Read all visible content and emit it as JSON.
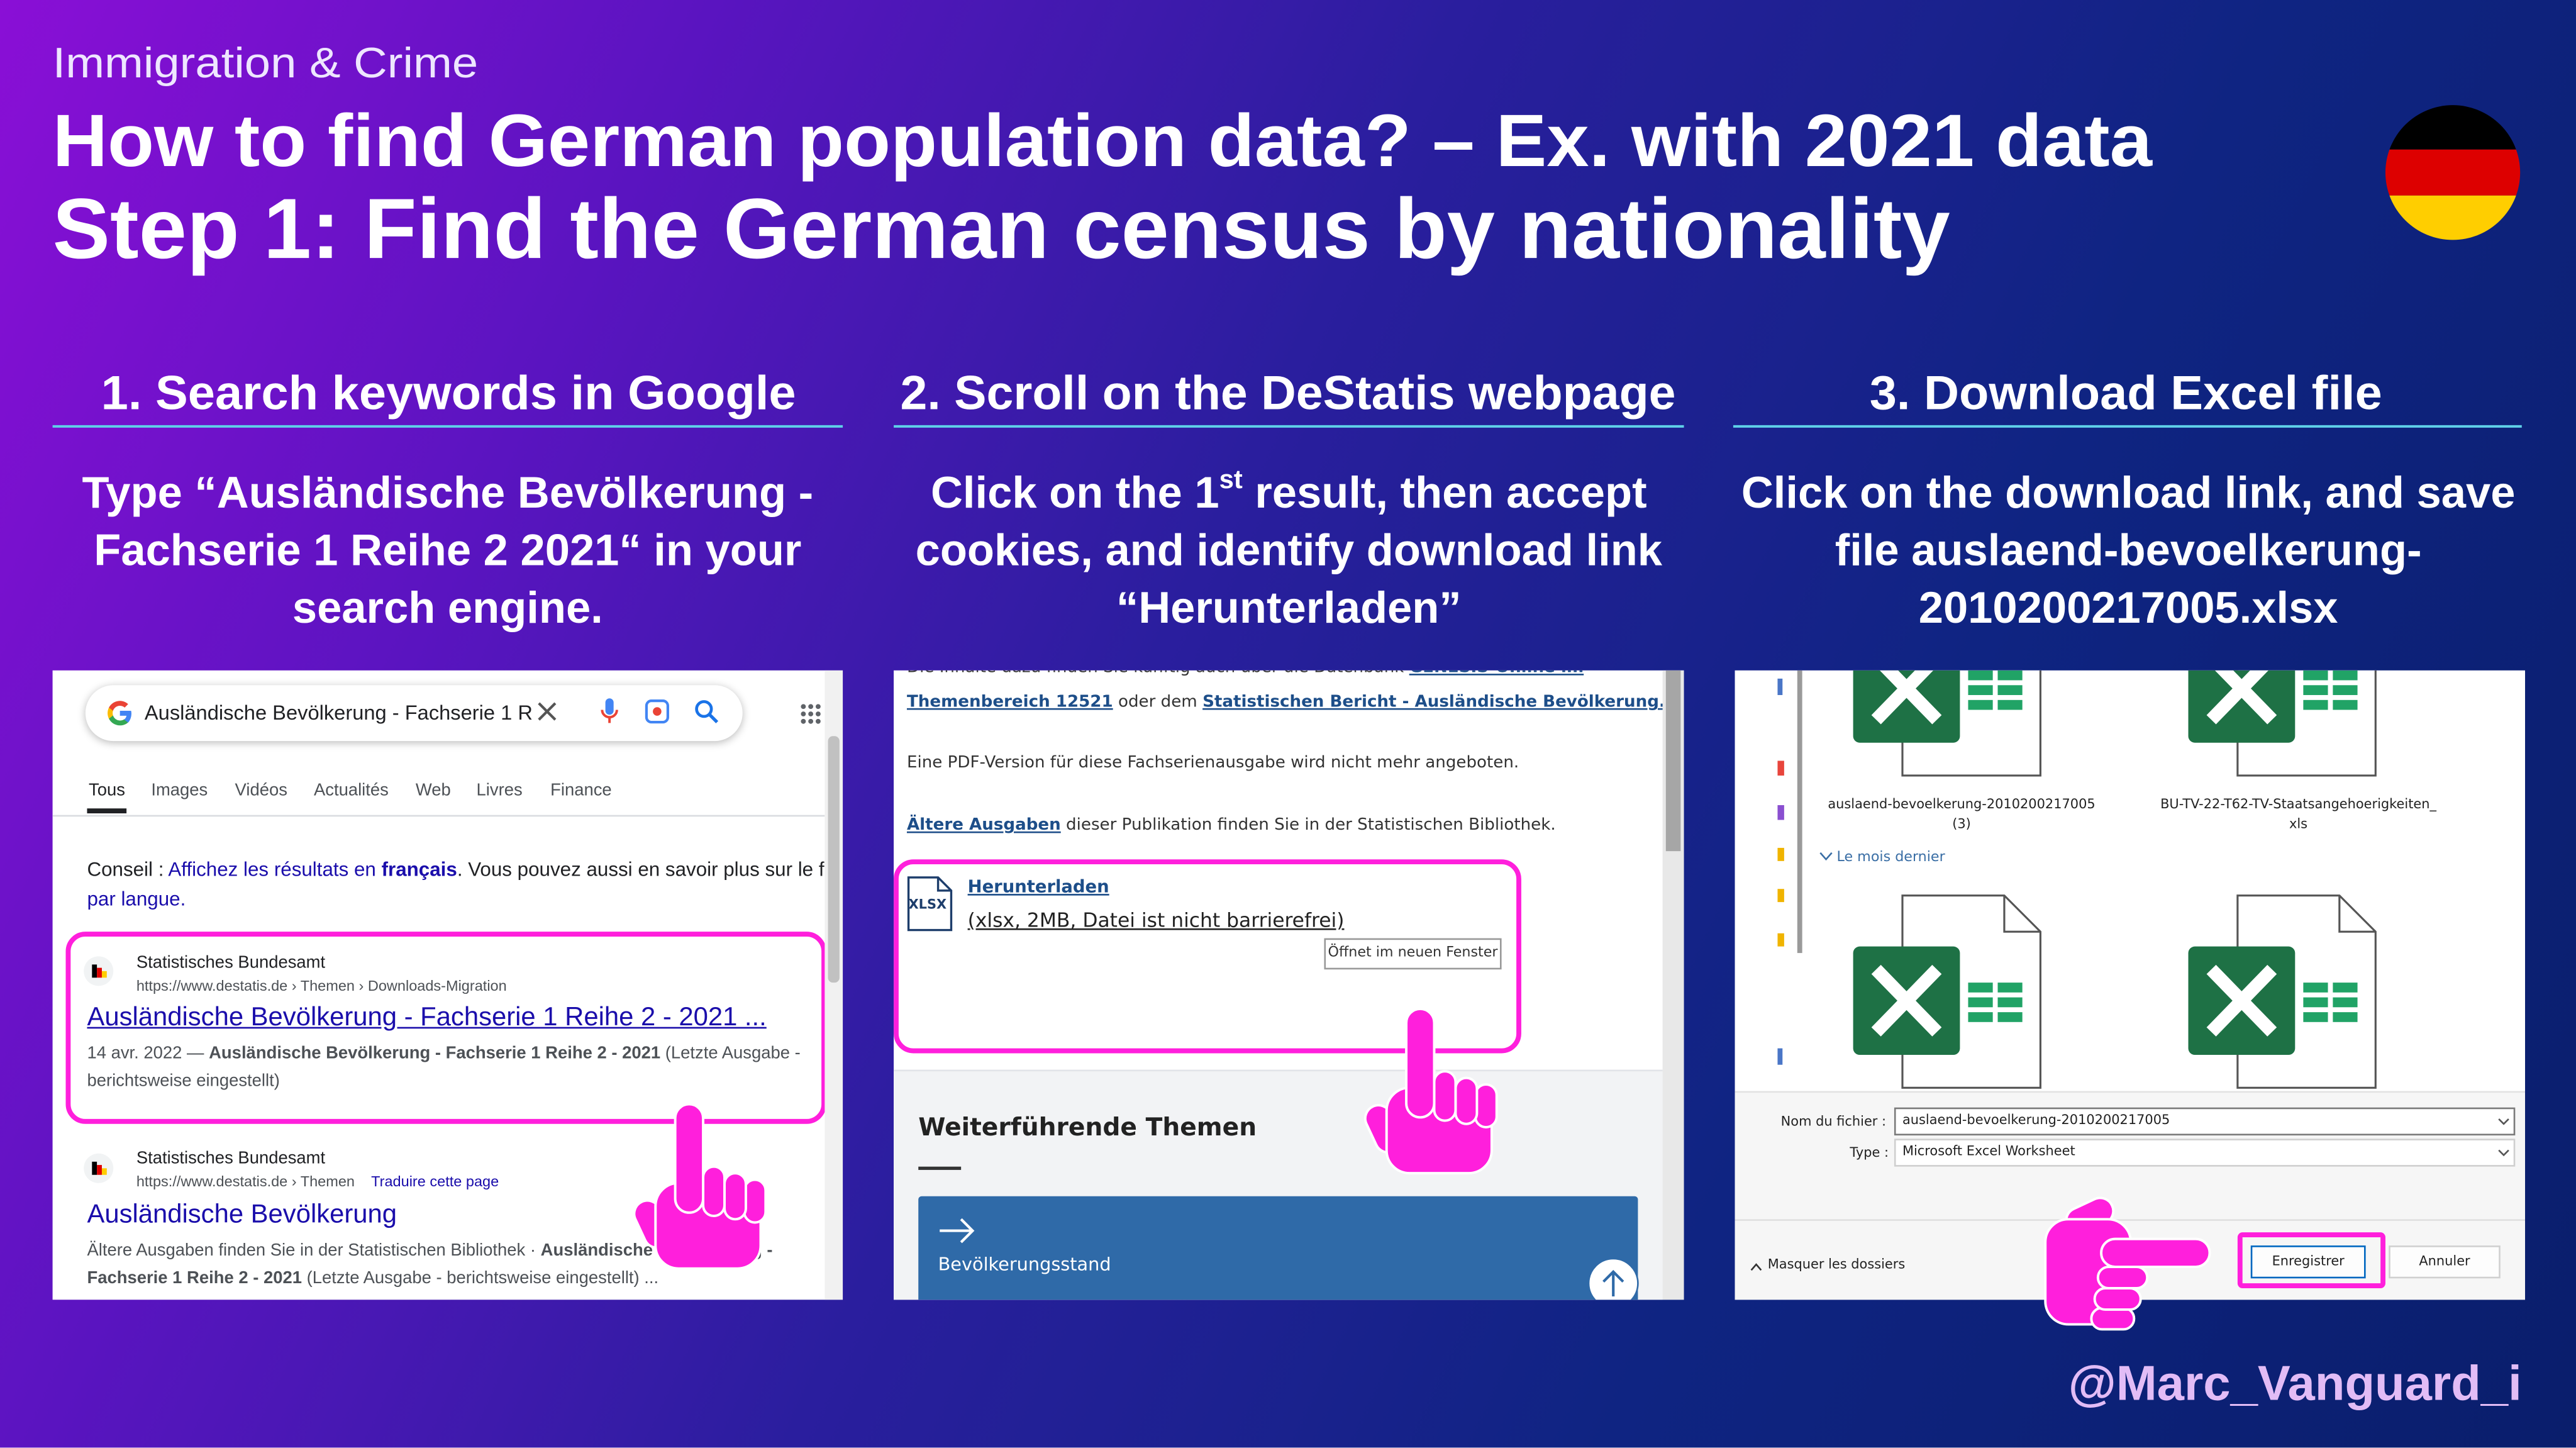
{
  "header": {
    "category": "Immigration & Crime",
    "title": "How to find German population data? – Ex. with 2021 data",
    "subtitle": "Step 1: Find the German census by nationality"
  },
  "steps": [
    {
      "heading": "1. Search keywords in Google",
      "instruction": "Type “Ausländische Bevölkerung - Fachserie 1 Reihe 2 2021“ in your search engine.",
      "screenshot": {
        "query": "Ausländische Bevölkerung - Fachserie 1 R",
        "tabs": [
          "Tous",
          "Images",
          "Vidéos",
          "Actualités",
          "Web",
          "Livres",
          "Finance"
        ],
        "tip": {
          "label": "Conseil : ",
          "link": "Affichez les résultats en ",
          "link_bold": "français",
          "text": ". Vous pouvez aussi en savoir plus sur le f",
          "link2": "par langue."
        },
        "results": [
          {
            "site": "Statistisches Bundesamt",
            "url": "https://www.destatis.de › Themen › Downloads-Migration",
            "title": "Ausländische Bevölkerung - Fachserie 1 Reihe 2 - 2021 ...",
            "date": "14 avr. 2022 — ",
            "snippet_bold": "Ausländische Bevölkerung - Fachserie 1 Reihe 2 - 2021",
            "snippet": " (Letzte Ausgabe - berichtsweise eingestellt)"
          },
          {
            "site": "Statistisches Bundesamt",
            "url": "https://www.destatis.de › Themen",
            "translate": "Traduire cette page",
            "title": "Ausländische Bevölkerung",
            "date": "Ältere Ausgaben finden Sie in der Statistischen Bibliothek · ",
            "snippet_bold": "Ausländische Bevölkerung - Fachserie 1 Reihe 2 - 2021",
            "snippet": " (Letzte Ausgabe - berichtsweise eingestellt) ..."
          }
        ]
      }
    },
    {
      "heading": "2. Scroll on the DeStatis webpage",
      "instruction": {
        "before": "Click on the 1",
        "superscript": "st",
        "after": " result, then accept cookies, and identify download link “Herunterladen”"
      },
      "screenshot": {
        "top_line": "Die Inhalte dazu finden Sie künftig auch über die Datenbank ",
        "top_link": "GENESIS-Online im",
        "links_line": {
          "link1": "Themenbereich 12521",
          "text": " oder dem ",
          "link2": "Statistischen Bericht - Ausländische Bevölkerung."
        },
        "pdf_note": "Eine PDF-Version für diese Fachserienausgabe wird nicht mehr angeboten.",
        "archive": {
          "link": "Ältere Ausgaben",
          "text": " dieser Publikation finden Sie in der Statistischen Bibliothek."
        },
        "file_icon": "XLSX",
        "download": "Herunterladen",
        "file_info": "(xlsx, 2MB, Datei ist nicht barrierefrei)",
        "new_window": "Öffnet im neuen Fenster",
        "related_heading": "Weiterführende Themen",
        "related_card": "Bevölkerungsstand"
      }
    },
    {
      "heading": "3. Download Excel file",
      "instruction": "Click on the download link, and save file auslaend-bevoelkerung-2010200217005.xlsx",
      "screenshot": {
        "files": [
          "auslaend-bevoelkerung-2010200217005 (3)",
          "BU-TV-22-T62-TV-Staatsangehoerigkeiten_xls"
        ],
        "group": "Le mois dernier",
        "filename_label": "Nom du fichier :",
        "filename": "auslaend-bevoelkerung-2010200217005",
        "type_label": "Type :",
        "type": "Microsoft Excel Worksheet",
        "hide_folders": "Masquer les dossiers",
        "save": "Enregistrer",
        "cancel": "Annuler"
      }
    }
  ],
  "footer": {
    "handle": "@Marc_Vanguard_i"
  }
}
